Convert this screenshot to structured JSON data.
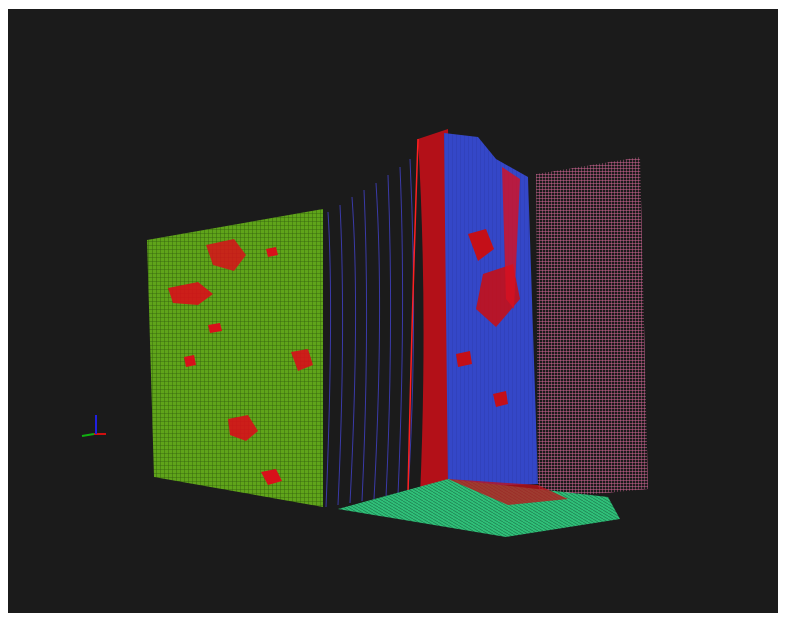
{
  "viewer": {
    "background_color": "#1b1b1b",
    "frame_color": "#ffffff"
  },
  "mesh": {
    "colors": {
      "left_face": "#7ed321",
      "left_face_dark": "#3d6b12",
      "defect": "#e0101a",
      "gap_lines": "#3a3aa8",
      "front_face": "#3a4fd8",
      "right_face": "#e07aa8",
      "bottom_face": "#3ddc8a"
    }
  },
  "axes_gizmo": {
    "icon": "xyz-axes-icon",
    "x_color": "#d01010",
    "y_color": "#10b010",
    "z_color": "#2020e0"
  }
}
